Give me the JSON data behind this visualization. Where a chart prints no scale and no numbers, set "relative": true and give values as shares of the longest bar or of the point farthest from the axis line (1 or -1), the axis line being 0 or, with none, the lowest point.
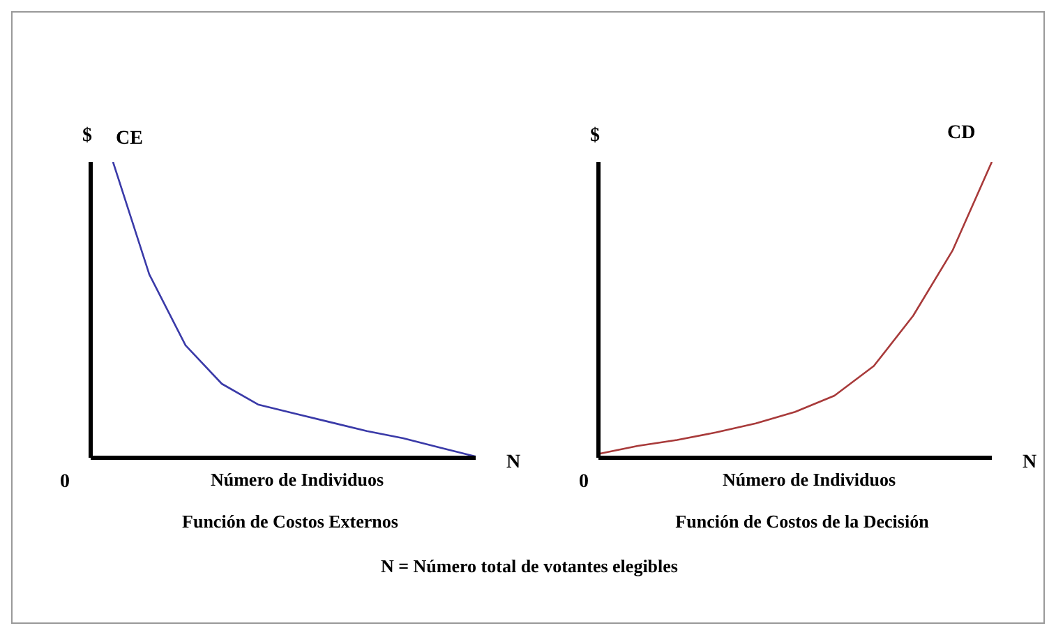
{
  "chart_data": [
    {
      "type": "line",
      "relative": true,
      "ylabel": "$",
      "xlabel": "Número de Individuos",
      "subtitle": "Función de Costos Externos",
      "annotations": [
        "0",
        "N"
      ],
      "legend": false,
      "grid": false,
      "categories": [
        null,
        null,
        null,
        null,
        null,
        null,
        null,
        null,
        null,
        null,
        null
      ],
      "series": [
        {
          "name": "CE",
          "color": "#3a3aa8",
          "values": [
            1.0,
            0.62,
            0.38,
            0.25,
            0.18,
            0.15,
            0.12,
            0.09,
            0.066,
            0.035,
            0.004
          ]
        }
      ]
    },
    {
      "type": "line",
      "relative": true,
      "ylabel": "$",
      "xlabel": "Número de Individuos",
      "subtitle": "Función de Costos de la Decisión",
      "annotations": [
        "0",
        "N",
        "N = Número total de votantes elegibles"
      ],
      "legend": false,
      "grid": false,
      "categories": [
        null,
        null,
        null,
        null,
        null,
        null,
        null,
        null,
        null,
        null,
        null
      ],
      "series": [
        {
          "name": "CD",
          "color": "#a83a3a",
          "values": [
            0.013,
            0.04,
            0.06,
            0.086,
            0.116,
            0.155,
            0.21,
            0.31,
            0.48,
            0.7,
            1.0
          ]
        }
      ]
    }
  ]
}
